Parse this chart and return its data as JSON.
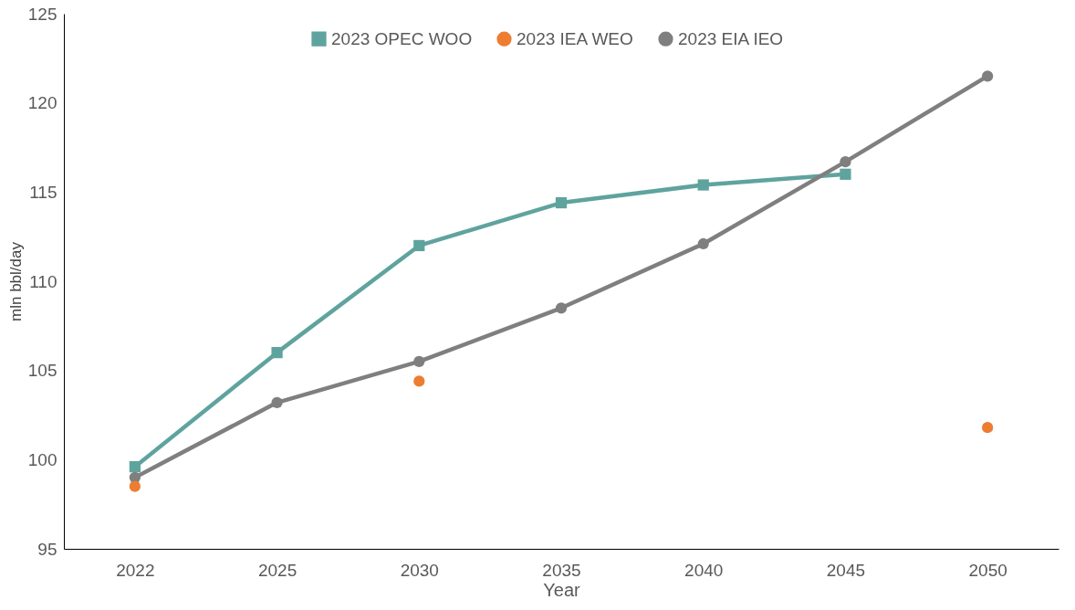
{
  "chart_data": {
    "type": "line",
    "xlabel": "Year",
    "ylabel": "mln bbl/day",
    "categories": [
      "2022",
      "2025",
      "2030",
      "2035",
      "2040",
      "2045",
      "2050"
    ],
    "series": [
      {
        "name": "2023 OPEC WOO",
        "color": "#5fa39e",
        "marker": "square",
        "values": [
          99.6,
          106.0,
          112.0,
          114.4,
          115.4,
          116.0,
          null
        ]
      },
      {
        "name": "2023 IEA WEO",
        "type": "scatter",
        "color": "#ed7d31",
        "marker": "circle",
        "values": [
          98.5,
          null,
          104.4,
          null,
          null,
          null,
          101.8
        ]
      },
      {
        "name": "2023 EIA IEO",
        "color": "#7f7f7f",
        "marker": "circle",
        "values": [
          99.0,
          103.2,
          105.5,
          108.5,
          112.1,
          116.7,
          121.5
        ]
      }
    ],
    "ylim": [
      95,
      125
    ],
    "yticks": [
      95,
      100,
      105,
      110,
      115,
      120,
      125
    ],
    "grid": false,
    "legend": "top"
  }
}
